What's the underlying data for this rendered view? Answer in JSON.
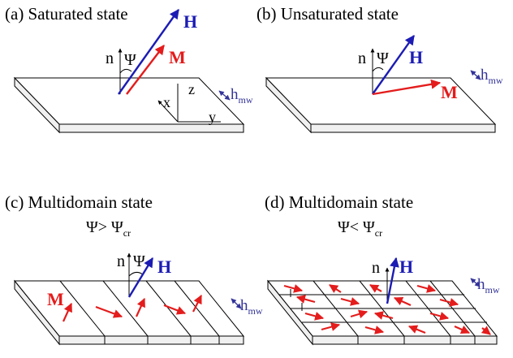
{
  "panels": [
    {
      "id": "a",
      "caption": "(a) Saturated state",
      "n_label": "n",
      "psi_label": "Ψ",
      "h_label": "H",
      "m_label": "M",
      "hmw_main": "h",
      "hmw_sub": "mw",
      "axes": {
        "z": "z",
        "x": "x",
        "y": "y"
      }
    },
    {
      "id": "b",
      "caption": "(b) Unsaturated state",
      "n_label": "n",
      "psi_label": "Ψ",
      "h_label": "H",
      "m_label": "M",
      "hmw_main": "h",
      "hmw_sub": "mw"
    },
    {
      "id": "c",
      "caption": "(c) Multidomain state",
      "condition_main": "Ψ> Ψ",
      "condition_sub": "cr",
      "n_label": "n",
      "psi_label": "Ψ",
      "h_label": "H",
      "m_label": "M",
      "hmw_main": "h",
      "hmw_sub": "mw"
    },
    {
      "id": "d",
      "caption": "(d) Multidomain state",
      "condition_main": "Ψ< Ψ",
      "condition_sub": "cr",
      "n_label": "n",
      "h_label": "H",
      "hmw_main": "h",
      "hmw_sub": "mw"
    }
  ],
  "colors": {
    "h_vector": "#1c1cb4",
    "m_vector": "#e41c1c",
    "hmw": "#333399",
    "black": "#000000"
  }
}
